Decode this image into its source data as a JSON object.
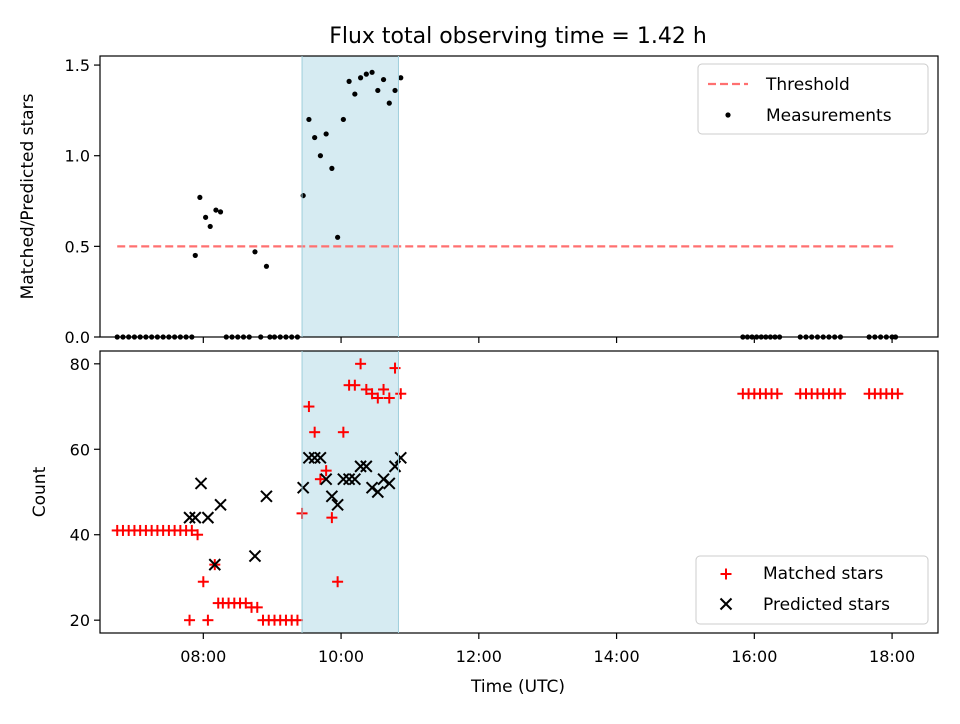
{
  "figure": {
    "title": "Flux total observing time = 1.42 h"
  },
  "chart_data": [
    {
      "type": "scatter",
      "panel": "top",
      "ylabel": "Matched/Predicted stars",
      "xlabel": "",
      "xlim": [
        "06:30",
        "18:40"
      ],
      "ylim": [
        0,
        1.55
      ],
      "yticks": [
        0.0,
        0.5,
        1.0,
        1.5
      ],
      "ytick_labels": [
        "0.0",
        "0.5",
        "1.0",
        "1.5"
      ],
      "xticks": [
        "08:00",
        "10:00",
        "12:00",
        "14:00",
        "16:00",
        "18:00"
      ],
      "highlight_span": {
        "start": "09:26",
        "end": "10:50",
        "color": "#add8e6"
      },
      "threshold": {
        "name": "Threshold",
        "value": 0.5,
        "x_start": "06:45",
        "x_end": "18:03",
        "color": "#ff7070"
      },
      "legend": {
        "position": "upper right",
        "entries": [
          "Threshold",
          "Measurements"
        ]
      },
      "series": [
        {
          "name": "Measurements",
          "color": "#000000",
          "x": [
            "06:45",
            "06:50",
            "06:55",
            "07:00",
            "07:05",
            "07:10",
            "07:15",
            "07:20",
            "07:25",
            "07:30",
            "07:35",
            "07:40",
            "07:45",
            "07:50",
            "07:53",
            "07:57",
            "08:02",
            "08:06",
            "08:11",
            "08:15",
            "08:20",
            "08:25",
            "08:30",
            "08:35",
            "08:40",
            "08:45",
            "08:50",
            "08:55",
            "08:58",
            "09:02",
            "09:07",
            "09:12",
            "09:17",
            "09:22",
            "09:27",
            "09:32",
            "09:37",
            "09:42",
            "09:47",
            "09:52",
            "09:57",
            "10:02",
            "10:07",
            "10:12",
            "10:17",
            "10:22",
            "10:27",
            "10:32",
            "10:37",
            "10:42",
            "10:47",
            "10:52",
            "15:50",
            "15:54",
            "15:58",
            "16:02",
            "16:06",
            "16:10",
            "16:14",
            "16:18",
            "16:22",
            "16:40",
            "16:45",
            "16:50",
            "16:55",
            "17:00",
            "17:05",
            "17:10",
            "17:15",
            "17:40",
            "17:45",
            "17:50",
            "17:55",
            "18:00",
            "18:03"
          ],
          "y": [
            0,
            0,
            0,
            0,
            0,
            0,
            0,
            0,
            0,
            0,
            0,
            0,
            0,
            0,
            0.45,
            0.77,
            0.66,
            0.61,
            0.7,
            0.69,
            0,
            0,
            0,
            0,
            0,
            0.47,
            0,
            0.39,
            0,
            0,
            0,
            0,
            0,
            0,
            0.78,
            1.2,
            1.1,
            1.0,
            1.12,
            0.93,
            0.55,
            1.2,
            1.41,
            1.34,
            1.43,
            1.45,
            1.46,
            1.36,
            1.42,
            1.29,
            1.36,
            1.43,
            0,
            0,
            0,
            0,
            0,
            0,
            0,
            0,
            0,
            0,
            0,
            0,
            0,
            0,
            0,
            0,
            0,
            0,
            0,
            0,
            0,
            0,
            0
          ]
        }
      ]
    },
    {
      "type": "scatter",
      "panel": "bottom",
      "ylabel": "Count",
      "xlabel": "Time (UTC)",
      "xlim": [
        "06:30",
        "18:40"
      ],
      "ylim": [
        17,
        83
      ],
      "yticks": [
        20,
        40,
        60,
        80
      ],
      "ytick_labels": [
        "20",
        "40",
        "60",
        "80"
      ],
      "xticks": [
        "08:00",
        "10:00",
        "12:00",
        "14:00",
        "16:00",
        "18:00"
      ],
      "xtick_labels": [
        "08:00",
        "10:00",
        "12:00",
        "14:00",
        "16:00",
        "18:00"
      ],
      "highlight_span": {
        "start": "09:26",
        "end": "10:50",
        "color": "#add8e6"
      },
      "legend": {
        "position": "lower right",
        "entries": [
          "Matched stars",
          "Predicted stars"
        ]
      },
      "series": [
        {
          "name": "Matched stars",
          "marker": "plus",
          "color": "#ff0000",
          "x": [
            "06:45",
            "06:50",
            "06:55",
            "07:00",
            "07:05",
            "07:10",
            "07:15",
            "07:20",
            "07:25",
            "07:30",
            "07:35",
            "07:40",
            "07:45",
            "07:50",
            "07:48",
            "07:55",
            "08:00",
            "08:04",
            "08:10",
            "08:13",
            "08:17",
            "08:22",
            "08:27",
            "08:32",
            "08:37",
            "08:42",
            "08:47",
            "08:52",
            "08:57",
            "09:02",
            "09:07",
            "09:12",
            "09:17",
            "09:22",
            "09:26",
            "09:32",
            "09:37",
            "09:42",
            "09:47",
            "09:52",
            "09:57",
            "10:02",
            "10:07",
            "10:12",
            "10:17",
            "10:22",
            "10:27",
            "10:32",
            "10:37",
            "10:42",
            "10:47",
            "10:52",
            "15:50",
            "15:55",
            "16:00",
            "16:05",
            "16:10",
            "16:15",
            "16:20",
            "16:40",
            "16:45",
            "16:50",
            "16:55",
            "17:00",
            "17:05",
            "17:10",
            "17:15",
            "17:40",
            "17:45",
            "17:50",
            "17:55",
            "18:00",
            "18:05"
          ],
          "y": [
            41,
            41,
            41,
            41,
            41,
            41,
            41,
            41,
            41,
            41,
            41,
            41,
            41,
            41,
            20,
            40,
            29,
            20,
            33,
            24,
            24,
            24,
            24,
            24,
            24,
            23,
            23,
            20,
            20,
            20,
            20,
            20,
            20,
            20,
            45,
            70,
            64,
            53,
            55,
            44,
            29,
            64,
            75,
            75,
            80,
            74,
            73,
            72,
            74,
            72,
            79,
            73,
            73,
            73,
            73,
            73,
            73,
            73,
            73,
            73,
            73,
            73,
            73,
            73,
            73,
            73,
            73,
            73,
            73,
            73,
            73,
            73,
            73
          ]
        },
        {
          "name": "Predicted stars",
          "marker": "x",
          "color": "#000000",
          "x": [
            "07:48",
            "07:53",
            "07:58",
            "08:04",
            "08:10",
            "08:15",
            "08:45",
            "08:55",
            "09:27",
            "09:32",
            "09:37",
            "09:42",
            "09:47",
            "09:52",
            "09:57",
            "10:02",
            "10:07",
            "10:12",
            "10:17",
            "10:22",
            "10:27",
            "10:32",
            "10:37",
            "10:42",
            "10:47",
            "10:52"
          ],
          "y": [
            44,
            44,
            52,
            44,
            33,
            47,
            35,
            49,
            51,
            58,
            58,
            58,
            53,
            49,
            47,
            53,
            53,
            53,
            56,
            56,
            51,
            50,
            53,
            52,
            56,
            58
          ]
        }
      ]
    }
  ]
}
